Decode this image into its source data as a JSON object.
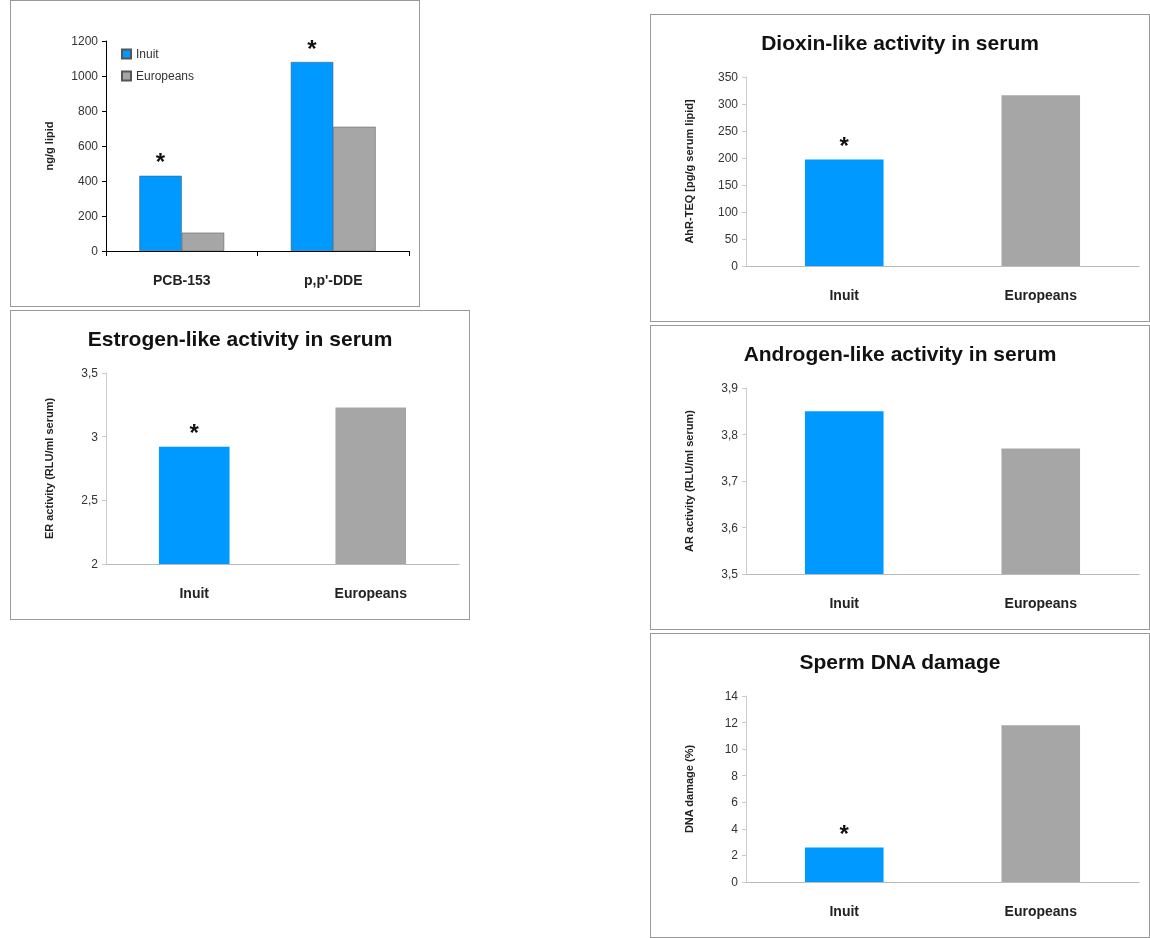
{
  "chart_data": [
    {
      "type": "bar",
      "ylabel": "ng/g lipid",
      "categories": [
        "PCB-153",
        "p,p'-DDE"
      ],
      "series": [
        {
          "name": "Inuit",
          "color": "#0099ff",
          "values": [
            430,
            1080
          ]
        },
        {
          "name": "Europeans",
          "color": "#a6a6a6",
          "values": [
            105,
            710
          ]
        }
      ],
      "ylim": [
        0,
        1200
      ],
      "yticks": [
        0,
        200,
        400,
        600,
        800,
        1000,
        1200
      ],
      "legend": "top left",
      "grid": false,
      "annotations": [
        {
          "text": "*",
          "x": "PCB-153",
          "y": 430
        },
        {
          "text": "*",
          "x": "p,p'-DDE",
          "y": 1080
        }
      ]
    },
    {
      "type": "bar",
      "title": "Estrogen-like activity in serum",
      "ylabel": "ER activity (RLU/ml serum)",
      "categories": [
        "Inuit",
        "Europeans"
      ],
      "values": [
        2.92,
        3.23
      ],
      "colors": [
        "#0099ff",
        "#a6a6a6"
      ],
      "ylim": [
        2,
        3.5
      ],
      "yticks": [
        {
          "value": 2,
          "label": "2"
        },
        {
          "value": 2.5,
          "label": "2,5"
        },
        {
          "value": 3,
          "label": "3"
        },
        {
          "value": 3.5,
          "label": "3,5"
        }
      ],
      "grid": false,
      "annotations": [
        {
          "text": "*",
          "x": "Inuit",
          "y": 2.92
        }
      ]
    },
    {
      "type": "bar",
      "title": "Dioxin-like activity in serum",
      "ylabel": "AhR-TEQ [pg/g serum lipid]",
      "categories": [
        "Inuit",
        "Europeans"
      ],
      "values": [
        197,
        316
      ],
      "colors": [
        "#0099ff",
        "#a6a6a6"
      ],
      "ylim": [
        0,
        350
      ],
      "yticks": [
        0,
        50,
        100,
        150,
        200,
        250,
        300,
        350
      ],
      "grid": false,
      "annotations": [
        {
          "text": "*",
          "x": "Inuit",
          "y": 197
        }
      ]
    },
    {
      "type": "bar",
      "title": "Androgen-like activity in serum",
      "ylabel": "AR activity (RLU/ml serum)",
      "categories": [
        "Inuit",
        "Europeans"
      ],
      "values": [
        3.85,
        3.77
      ],
      "colors": [
        "#0099ff",
        "#a6a6a6"
      ],
      "ylim": [
        3.5,
        3.9
      ],
      "yticks": [
        {
          "value": 3.5,
          "label": "3,5"
        },
        {
          "value": 3.6,
          "label": "3,6"
        },
        {
          "value": 3.7,
          "label": "3,7"
        },
        {
          "value": 3.8,
          "label": "3,8"
        },
        {
          "value": 3.9,
          "label": "3,9"
        }
      ],
      "grid": false
    },
    {
      "type": "bar",
      "title": "Sperm DNA damage",
      "ylabel": "DNA damage (%)",
      "categories": [
        "Inuit",
        "Europeans"
      ],
      "values": [
        2.6,
        11.8
      ],
      "colors": [
        "#0099ff",
        "#a6a6a6"
      ],
      "ylim": [
        0,
        14
      ],
      "yticks": [
        0,
        2,
        4,
        6,
        8,
        10,
        12,
        14
      ],
      "grid": false,
      "annotations": [
        {
          "text": "*",
          "x": "Inuit",
          "y": 2.6
        }
      ]
    }
  ]
}
